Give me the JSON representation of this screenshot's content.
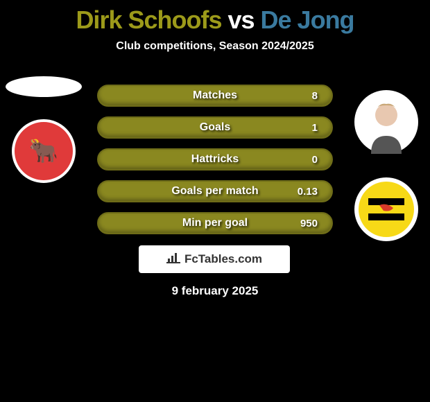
{
  "title": {
    "player1": "Dirk Schoofs",
    "vs": " vs ",
    "player2": "De Jong",
    "color1": "#9c9a1a",
    "vs_color": "#ffffff",
    "color2": "#3a7a9f"
  },
  "subtitle": "Club competitions, Season 2024/2025",
  "player_left": {
    "avatar_bg": "#ffffff",
    "club": {
      "bg": "#e03a3a",
      "text_color": "#ffffff",
      "initials": "🐂"
    }
  },
  "player_right": {
    "avatar_bg": "#f0d8c8",
    "club": {
      "bg": "#f7d917",
      "text_color": "#000000",
      "initials": "⚑"
    }
  },
  "bars": [
    {
      "label": "Matches",
      "left": "",
      "right": "8",
      "bar_color": "#8a8820",
      "fill_pct": 0
    },
    {
      "label": "Goals",
      "left": "",
      "right": "1",
      "bar_color": "#8a8820",
      "fill_pct": 0
    },
    {
      "label": "Hattricks",
      "left": "",
      "right": "0",
      "bar_color": "#8a8820",
      "fill_pct": 0
    },
    {
      "label": "Goals per match",
      "left": "",
      "right": "0.13",
      "bar_color": "#8a8820",
      "fill_pct": 0
    },
    {
      "label": "Min per goal",
      "left": "",
      "right": "950",
      "bar_color": "#8a8820",
      "fill_pct": 0
    }
  ],
  "branding": {
    "text": "FcTables.com"
  },
  "date": "9 february 2025",
  "colors": {
    "background": "#000000",
    "text": "#ffffff",
    "bar_border": "#6e6c18"
  }
}
